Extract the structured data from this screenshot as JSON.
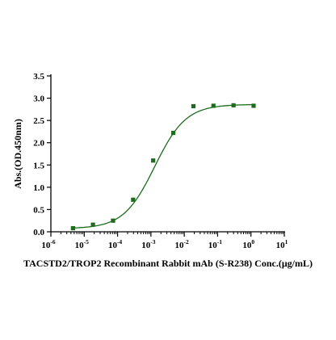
{
  "chart_data": {
    "type": "scatter",
    "title": "",
    "xlabel": "TACSTD2/TROP2 Recombinant Rabbit mAb (S-R238) Conc.(μg/mL)",
    "ylabel": "Abs.(OD.450nm)",
    "xscale": "log",
    "xlim": [
      1e-06,
      10
    ],
    "ylim": [
      0,
      3.5
    ],
    "x_ticks": [
      {
        "base": "10",
        "exp": "-6"
      },
      {
        "base": "10",
        "exp": "-5"
      },
      {
        "base": "10",
        "exp": "-4"
      },
      {
        "base": "10",
        "exp": "-3"
      },
      {
        "base": "10",
        "exp": "-2"
      },
      {
        "base": "10",
        "exp": "-1"
      },
      {
        "base": "10",
        "exp": "0"
      },
      {
        "base": "10",
        "exp": "1"
      }
    ],
    "y_ticks": [
      "0.0",
      "0.5",
      "1.0",
      "1.5",
      "2.0",
      "2.5",
      "3.0",
      "3.5"
    ],
    "grid": false,
    "legend": "none",
    "series": [
      {
        "marker": "square",
        "color": "#1e6b1e",
        "x": [
          4.6e-06,
          1.83e-05,
          7.32e-05,
          0.000293,
          0.00117,
          0.00469,
          0.0188,
          0.075,
          0.3,
          1.2
        ],
        "y": [
          0.08,
          0.16,
          0.25,
          0.72,
          1.6,
          2.22,
          2.82,
          2.83,
          2.84,
          2.83
        ]
      }
    ],
    "fit_curve": {
      "type": "4PL",
      "color": "#1e6b1e",
      "bottom": 0.07,
      "top": 2.86,
      "ec50": 0.0013,
      "hill": 0.93
    }
  }
}
